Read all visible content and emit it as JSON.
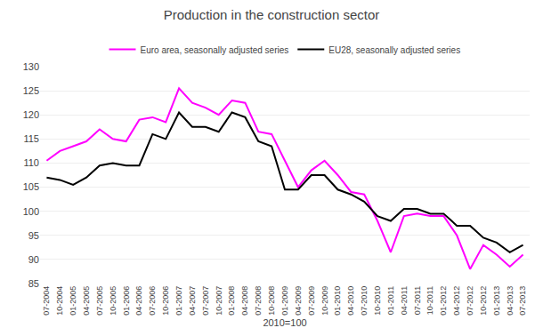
{
  "chart_data": {
    "type": "line",
    "title": "Production in the construction sector",
    "xlabel": "2010=100",
    "categories": [
      "07-2004",
      "10-2004",
      "01-2005",
      "04-2005",
      "07-2005",
      "10-2005",
      "01-2006",
      "04-2006",
      "07-2006",
      "10-2006",
      "01-2007",
      "04-2007",
      "07-2007",
      "10-2007",
      "01-2008",
      "04-2008",
      "07-2008",
      "10-2008",
      "01-2009",
      "04-2009",
      "07-2009",
      "10-2009",
      "01-2010",
      "04-2010",
      "07-2010",
      "10-2010",
      "01-2011",
      "04-2011",
      "07-2011",
      "10-2011",
      "01-2012",
      "04-2012",
      "07-2012",
      "10-2012",
      "01-2013",
      "04-2013",
      "07-2013"
    ],
    "series": [
      {
        "name": "Euro area, seasonally adjusted series",
        "color": "#FF00FF",
        "values": [
          110.5,
          112.5,
          113.5,
          114.5,
          117.0,
          115.0,
          114.5,
          119.0,
          119.5,
          118.5,
          125.5,
          122.5,
          121.5,
          120.0,
          123.0,
          122.5,
          116.5,
          116.0,
          110.5,
          105.0,
          108.5,
          110.5,
          107.5,
          104.0,
          103.5,
          98.0,
          91.5,
          99.0,
          99.5,
          99.0,
          99.0,
          95.0,
          88.0,
          93.0,
          91.0,
          88.5,
          91.0
        ]
      },
      {
        "name": "EU28, seasonally adjusted series",
        "color": "#000000",
        "values": [
          107.0,
          106.5,
          105.5,
          107.0,
          109.5,
          110.0,
          109.5,
          109.5,
          116.0,
          115.0,
          120.5,
          117.5,
          117.5,
          116.5,
          120.5,
          119.5,
          114.5,
          113.5,
          104.5,
          104.5,
          107.5,
          107.5,
          104.5,
          103.5,
          102.0,
          99.0,
          98.0,
          100.5,
          100.5,
          99.5,
          99.5,
          97.0,
          97.0,
          94.5,
          93.5,
          91.5,
          93.0
        ]
      }
    ],
    "ylim": [
      85,
      130
    ],
    "yticks": [
      85,
      90,
      95,
      100,
      105,
      110,
      115,
      120,
      125,
      130
    ],
    "grid": true,
    "legend": "top"
  }
}
